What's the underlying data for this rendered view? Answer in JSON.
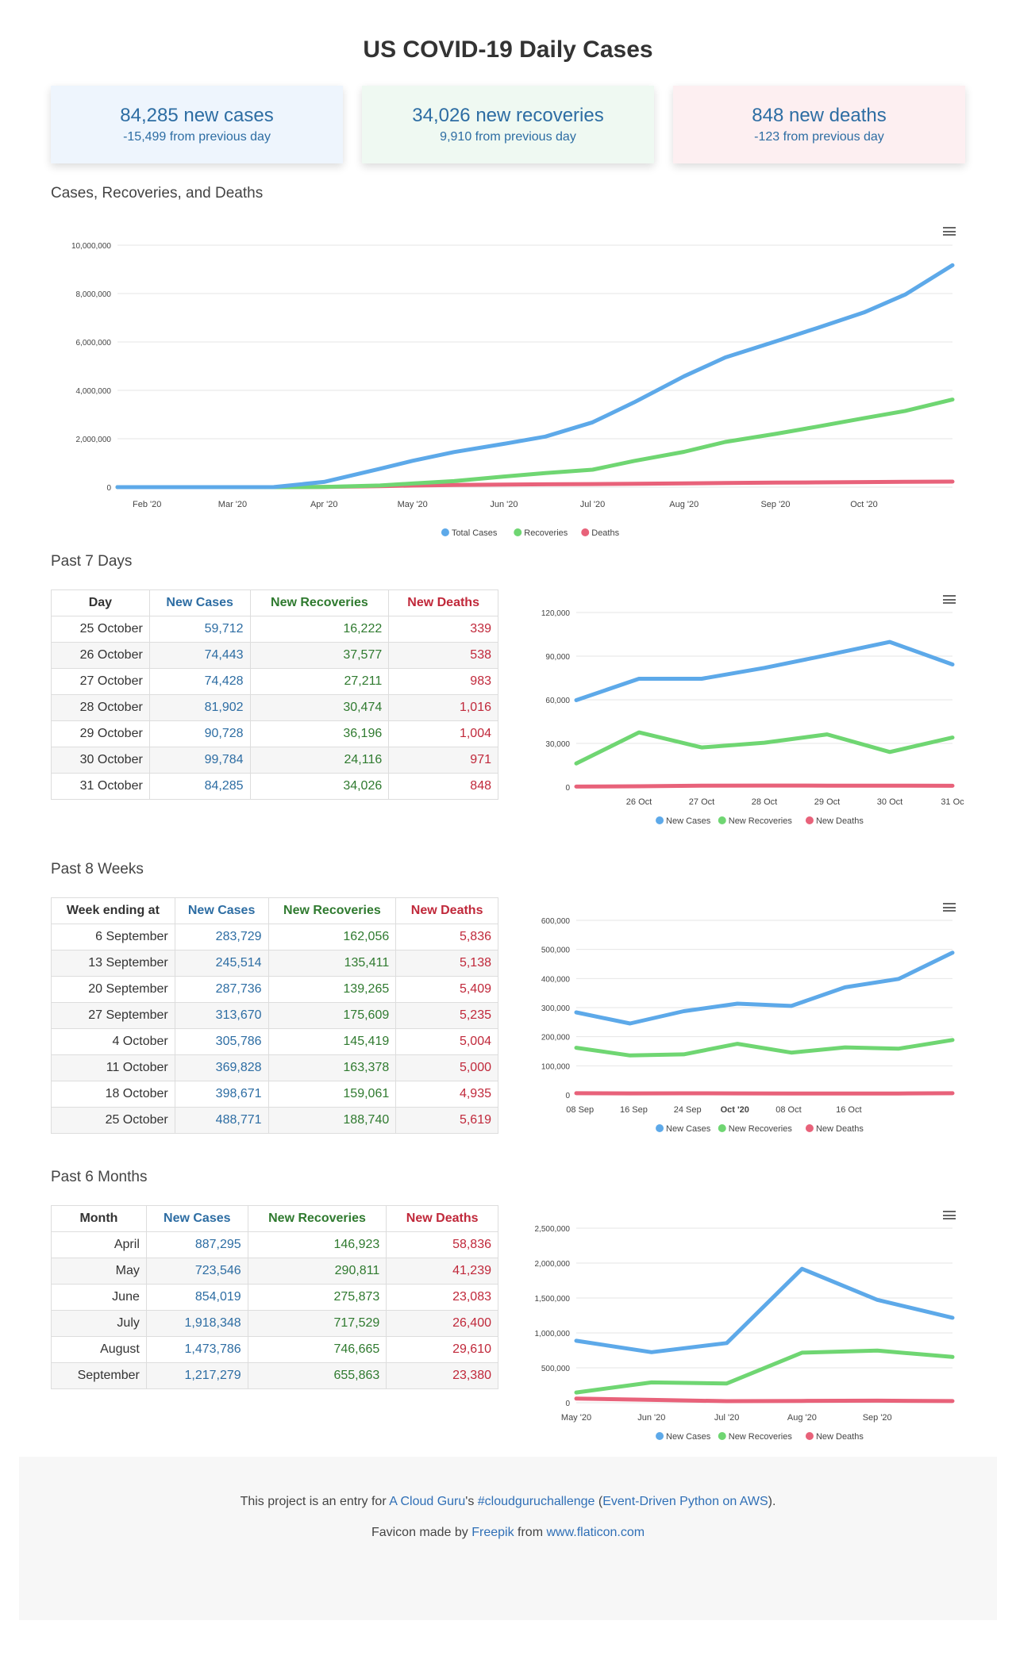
{
  "title": "US COVID-19 Daily Cases",
  "cards": [
    {
      "headline": "84,285 new cases",
      "delta": "-15,499 from previous day"
    },
    {
      "headline": "34,026 new recoveries",
      "delta": "9,910 from previous day"
    },
    {
      "headline": "848 new deaths",
      "delta": "-123 from previous day"
    }
  ],
  "sections": {
    "cumulative": "Cases, Recoveries, and Deaths",
    "days": "Past 7 Days",
    "weeks": "Past 8 Weeks",
    "months": "Past 6 Months"
  },
  "legend": {
    "total_cases": "Total Cases",
    "recoveries": "Recoveries",
    "deaths": "Deaths",
    "new_cases": "New Cases",
    "new_recoveries": "New Recoveries",
    "new_deaths": "New Deaths"
  },
  "colors": {
    "cases": "#5da9e9",
    "recoveries": "#6fd672",
    "deaths": "#e8627a"
  },
  "tables": {
    "days": {
      "headers": [
        "Day",
        "New Cases",
        "New Recoveries",
        "New Deaths"
      ],
      "rows": [
        [
          "25 October",
          "59,712",
          "16,222",
          "339"
        ],
        [
          "26 October",
          "74,443",
          "37,577",
          "538"
        ],
        [
          "27 October",
          "74,428",
          "27,211",
          "983"
        ],
        [
          "28 October",
          "81,902",
          "30,474",
          "1,016"
        ],
        [
          "29 October",
          "90,728",
          "36,196",
          "1,004"
        ],
        [
          "30 October",
          "99,784",
          "24,116",
          "971"
        ],
        [
          "31 October",
          "84,285",
          "34,026",
          "848"
        ]
      ]
    },
    "weeks": {
      "headers": [
        "Week ending at",
        "New Cases",
        "New Recoveries",
        "New Deaths"
      ],
      "rows": [
        [
          "6 September",
          "283,729",
          "162,056",
          "5,836"
        ],
        [
          "13 September",
          "245,514",
          "135,411",
          "5,138"
        ],
        [
          "20 September",
          "287,736",
          "139,265",
          "5,409"
        ],
        [
          "27 September",
          "313,670",
          "175,609",
          "5,235"
        ],
        [
          "4 October",
          "305,786",
          "145,419",
          "5,004"
        ],
        [
          "11 October",
          "369,828",
          "163,378",
          "5,000"
        ],
        [
          "18 October",
          "398,671",
          "159,061",
          "4,935"
        ],
        [
          "25 October",
          "488,771",
          "188,740",
          "5,619"
        ]
      ]
    },
    "months": {
      "headers": [
        "Month",
        "New Cases",
        "New Recoveries",
        "New Deaths"
      ],
      "rows": [
        [
          "April",
          "887,295",
          "146,923",
          "58,836"
        ],
        [
          "May",
          "723,546",
          "290,811",
          "41,239"
        ],
        [
          "June",
          "854,019",
          "275,873",
          "23,083"
        ],
        [
          "July",
          "1,918,348",
          "717,529",
          "26,400"
        ],
        [
          "August",
          "1,473,786",
          "746,665",
          "29,610"
        ],
        [
          "September",
          "1,217,279",
          "655,863",
          "23,380"
        ]
      ]
    }
  },
  "chart_data": [
    {
      "type": "line",
      "ylim": [
        0,
        10000000
      ],
      "yticks": [
        "0",
        "2,000,000",
        "4,000,000",
        "6,000,000",
        "8,000,000",
        "10,000,000"
      ],
      "x_tick_labels": [
        "Feb '20",
        "Mar '20",
        "Apr '20",
        "May '20",
        "Jun '20",
        "Jul '20",
        "Aug '20",
        "Sep '20",
        "Oct '20"
      ],
      "x": [
        "2020-01-22",
        "2020-03-15",
        "2020-04-01",
        "2020-04-20",
        "2020-05-01",
        "2020-05-15",
        "2020-06-01",
        "2020-06-15",
        "2020-07-01",
        "2020-07-15",
        "2020-08-01",
        "2020-08-15",
        "2020-09-01",
        "2020-09-15",
        "2020-10-01",
        "2020-10-15",
        "2020-10-31"
      ],
      "series": [
        {
          "name": "Total Cases",
          "values": [
            0,
            3500,
            215000,
            760000,
            1090000,
            1450000,
            1790000,
            2090000,
            2680000,
            3500000,
            4580000,
            5360000,
            6020000,
            6570000,
            7220000,
            7960000,
            9170000
          ]
        },
        {
          "name": "Recoveries",
          "values": [
            0,
            100,
            9000,
            70000,
            150000,
            250000,
            440000,
            580000,
            720000,
            1080000,
            1460000,
            1870000,
            2200000,
            2500000,
            2850000,
            3150000,
            3620000
          ]
        },
        {
          "name": "Deaths",
          "values": [
            0,
            60,
            5000,
            42000,
            65000,
            87000,
            105000,
            117000,
            128000,
            138000,
            155000,
            170000,
            186000,
            198000,
            209000,
            219000,
            230000
          ]
        }
      ],
      "legend": "bottom"
    },
    {
      "type": "line",
      "ylim": [
        0,
        120000
      ],
      "yticks": [
        "0",
        "30,000",
        "60,000",
        "90,000",
        "120,000"
      ],
      "x_tick_labels": [
        "26 Oct",
        "27 Oct",
        "28 Oct",
        "29 Oct",
        "30 Oct",
        "31 Oc"
      ],
      "series": [
        {
          "name": "New Cases",
          "values": [
            59712,
            74443,
            74428,
            81902,
            90728,
            99784,
            84285
          ]
        },
        {
          "name": "New Recoveries",
          "values": [
            16222,
            37577,
            27211,
            30474,
            36196,
            24116,
            34026
          ]
        },
        {
          "name": "New Deaths",
          "values": [
            339,
            538,
            983,
            1016,
            1004,
            971,
            848
          ]
        }
      ],
      "legend": "bottom"
    },
    {
      "type": "line",
      "ylim": [
        0,
        600000
      ],
      "yticks": [
        "0",
        "100,000",
        "200,000",
        "300,000",
        "400,000",
        "500,000",
        "600,000"
      ],
      "x_tick_labels": [
        "08 Sep",
        "16 Sep",
        "24 Sep",
        "Oct '20",
        "08 Oct",
        "16 Oct"
      ],
      "series": [
        {
          "name": "New Cases",
          "values": [
            283729,
            245514,
            287736,
            313670,
            305786,
            369828,
            398671,
            488771
          ]
        },
        {
          "name": "New Recoveries",
          "values": [
            162056,
            135411,
            139265,
            175609,
            145419,
            163378,
            159061,
            188740
          ]
        },
        {
          "name": "New Deaths",
          "values": [
            5836,
            5138,
            5409,
            5235,
            5004,
            5000,
            4935,
            5619
          ]
        }
      ],
      "legend": "bottom"
    },
    {
      "type": "line",
      "ylim": [
        0,
        2500000
      ],
      "yticks": [
        "0",
        "500,000",
        "1,000,000",
        "1,500,000",
        "2,000,000",
        "2,500,000"
      ],
      "x_tick_labels": [
        "May '20",
        "Jun '20",
        "Jul '20",
        "Aug '20",
        "Sep '20"
      ],
      "series": [
        {
          "name": "New Cases",
          "values": [
            887295,
            723546,
            854019,
            1918348,
            1473786,
            1217279
          ]
        },
        {
          "name": "New Recoveries",
          "values": [
            146923,
            290811,
            275873,
            717529,
            746665,
            655863
          ]
        },
        {
          "name": "New Deaths",
          "values": [
            58836,
            41239,
            23083,
            26400,
            29610,
            23380
          ]
        }
      ],
      "legend": "bottom"
    }
  ],
  "footer": {
    "line1_prefix": "This project is an entry for ",
    "acg": "A Cloud Guru",
    "apostrophe": "'s ",
    "hashtag": "#cloudguruchallenge",
    "open_paren": " (",
    "challenge": "Event-Driven Python on AWS",
    "close_paren": ").",
    "line2_prefix": "Favicon made by ",
    "freepik": "Freepik",
    "from": " from ",
    "flaticon": "www.flaticon.com"
  }
}
